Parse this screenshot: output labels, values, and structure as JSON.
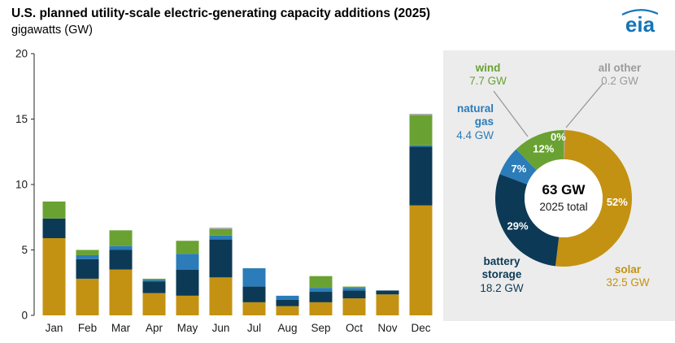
{
  "header": {
    "title": "U.S. planned utility-scale electric-generating capacity additions (2025)",
    "subtitle": "gigawatts (GW)",
    "logo_text": "eia"
  },
  "colors": {
    "solar": "#c49212",
    "battery_storage": "#0c3a56",
    "natural_gas": "#2b7cb8",
    "wind": "#69a233",
    "all_other": "#9b9b9b",
    "logo_blue": "#1474b8",
    "panel_bg": "#ececec",
    "percent_text": "#ffffff",
    "axis_text": "#1a1a1a"
  },
  "chart_data": [
    {
      "type": "bar",
      "stacked": true,
      "title": "U.S. planned utility-scale electric-generating capacity additions (2025)",
      "xlabel": "",
      "ylabel": "gigawatts (GW)",
      "ylim": [
        0,
        20
      ],
      "yticks": [
        0,
        5,
        10,
        15,
        20
      ],
      "grid": false,
      "legend": "none",
      "categories": [
        "Jan",
        "Feb",
        "Mar",
        "Apr",
        "May",
        "Jun",
        "Jul",
        "Aug",
        "Sep",
        "Oct",
        "Nov",
        "Dec"
      ],
      "series": [
        {
          "name": "solar",
          "key": "solar",
          "color": "#c49212",
          "values": [
            5.9,
            2.8,
            3.5,
            1.7,
            1.5,
            2.9,
            1.0,
            0.7,
            1.0,
            1.3,
            1.6,
            8.4
          ]
        },
        {
          "name": "battery storage",
          "key": "battery-storage",
          "color": "#0c3a56",
          "values": [
            1.5,
            1.5,
            1.5,
            0.9,
            2.0,
            2.9,
            1.2,
            0.5,
            0.8,
            0.6,
            0.3,
            4.5
          ]
        },
        {
          "name": "natural gas",
          "key": "natural-gas",
          "color": "#2b7cb8",
          "values": [
            0.0,
            0.3,
            0.3,
            0.1,
            1.2,
            0.3,
            1.4,
            0.3,
            0.3,
            0.2,
            0.0,
            0.1
          ]
        },
        {
          "name": "wind",
          "key": "wind",
          "color": "#69a233",
          "values": [
            1.3,
            0.4,
            1.2,
            0.1,
            1.0,
            0.5,
            0.0,
            0.0,
            0.9,
            0.1,
            0.0,
            2.3
          ]
        },
        {
          "name": "all other",
          "key": "all-other",
          "color": "#a5a5a5",
          "values": [
            0.0,
            0.0,
            0.0,
            0.0,
            0.0,
            0.1,
            0.0,
            0.0,
            0.0,
            0.0,
            0.0,
            0.1
          ]
        }
      ]
    },
    {
      "type": "donut",
      "center_title": "63 GW",
      "center_subtitle": "2025 total",
      "segments": [
        {
          "name": "all other",
          "key": "all-other",
          "value": 0.2,
          "gw_label": "0.2 GW",
          "pct_label": "0%",
          "color": "#a5a5a5"
        },
        {
          "name": "solar",
          "key": "solar",
          "value": 32.5,
          "gw_label": "32.5 GW",
          "pct_label": "52%",
          "color": "#c49212"
        },
        {
          "name": "battery storage",
          "key": "battery-storage",
          "value": 18.2,
          "gw_label": "18.2 GW",
          "pct_label": "29%",
          "color": "#0c3a56"
        },
        {
          "name": "natural gas",
          "key": "natural-gas",
          "value": 4.4,
          "gw_label": "4.4 GW",
          "pct_label": "7%",
          "color": "#2b7cb8"
        },
        {
          "name": "wind",
          "key": "wind",
          "value": 7.7,
          "gw_label": "7.7 GW",
          "pct_label": "12%",
          "color": "#69a233"
        }
      ]
    }
  ]
}
